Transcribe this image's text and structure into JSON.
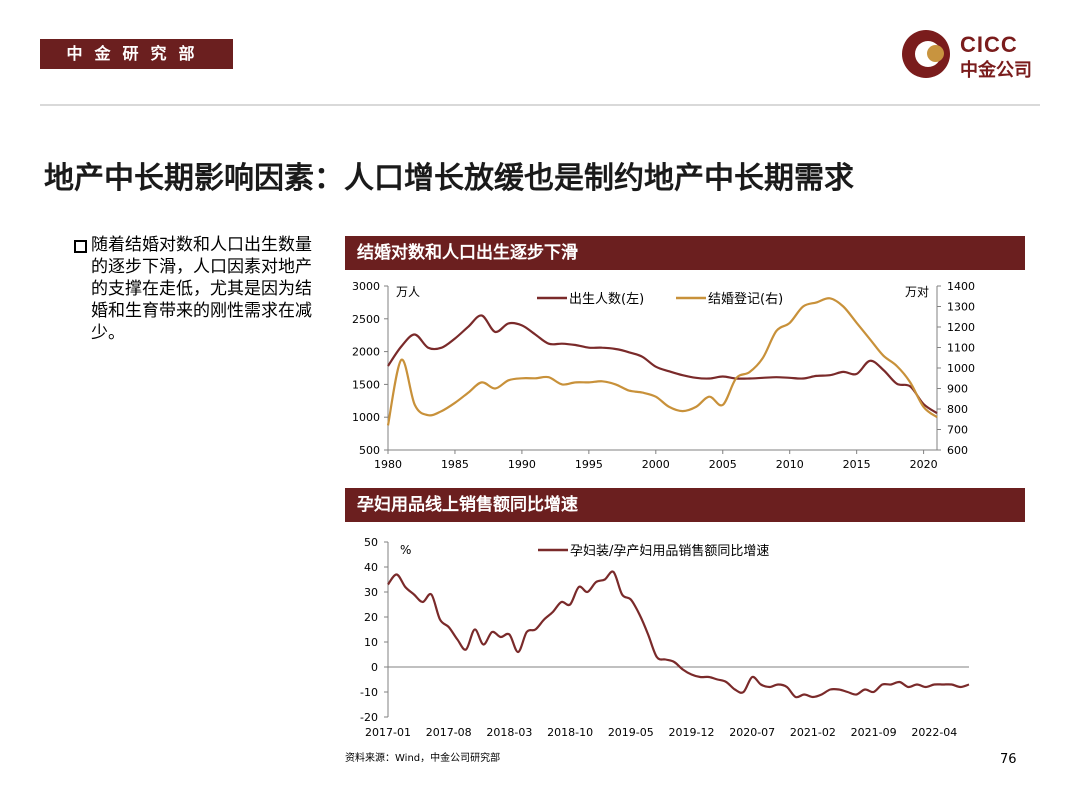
{
  "header": {
    "dept_label": "中金研究部",
    "logo_en": "CICC",
    "logo_cn": "中金公司"
  },
  "page": {
    "title": "地产中长期影响因素：人口增长放缓也是制约地产中长期需求",
    "page_number": "76"
  },
  "bullet": {
    "text": "随着结婚对数和人口出生数量的逐步下滑，人口因素对地产的支撑在走低，尤其是因为结婚和生育带来的刚性需求在减少。"
  },
  "footer": {
    "source": "资料来源：Wind，中金公司研究部"
  },
  "colors": {
    "brand": "#6b1f1f",
    "birth_line": "#7a2a2a",
    "marriage_line": "#c8913a",
    "growth_line": "#7a2a2a"
  },
  "chart_data": [
    {
      "type": "line",
      "title": "结婚对数和人口出生逐步下滑",
      "left_unit": "万人",
      "right_unit": "万对",
      "xlim": [
        1980,
        2021
      ],
      "x_ticks": [
        1980,
        1985,
        1990,
        1995,
        2000,
        2005,
        2010,
        2015,
        2020
      ],
      "ylim_left": [
        500,
        3000
      ],
      "y_ticks_left": [
        500,
        1000,
        1500,
        2000,
        2500,
        3000
      ],
      "ylim_right": [
        600,
        1400
      ],
      "y_ticks_right": [
        600,
        700,
        800,
        900,
        1000,
        1100,
        1200,
        1300,
        1400
      ],
      "legend_position": "top",
      "series": [
        {
          "name": "出生人数(左)",
          "axis": "left",
          "x": [
            1980,
            1981,
            1982,
            1983,
            1984,
            1985,
            1986,
            1987,
            1988,
            1989,
            1990,
            1991,
            1992,
            1993,
            1994,
            1995,
            1996,
            1997,
            1998,
            1999,
            2000,
            2001,
            2002,
            2003,
            2004,
            2005,
            2006,
            2007,
            2008,
            2009,
            2010,
            2011,
            2012,
            2013,
            2014,
            2015,
            2016,
            2017,
            2018,
            2019,
            2020,
            2021
          ],
          "y": [
            1780,
            2080,
            2260,
            2060,
            2060,
            2200,
            2380,
            2550,
            2300,
            2430,
            2400,
            2260,
            2120,
            2120,
            2100,
            2060,
            2060,
            2040,
            1990,
            1920,
            1770,
            1700,
            1640,
            1600,
            1590,
            1620,
            1590,
            1590,
            1600,
            1610,
            1600,
            1590,
            1630,
            1640,
            1690,
            1660,
            1860,
            1720,
            1510,
            1470,
            1200,
            1062
          ]
        },
        {
          "name": "结婚登记(右)",
          "axis": "right",
          "x": [
            1980,
            1981,
            1982,
            1983,
            1984,
            1985,
            1986,
            1987,
            1988,
            1989,
            1990,
            1991,
            1992,
            1993,
            1994,
            1995,
            1996,
            1997,
            1998,
            1999,
            2000,
            2001,
            2002,
            2003,
            2004,
            2005,
            2006,
            2007,
            2008,
            2009,
            2010,
            2011,
            2012,
            2013,
            2014,
            2015,
            2016,
            2017,
            2018,
            2019,
            2020,
            2021
          ],
          "y": [
            720,
            1040,
            820,
            770,
            790,
            830,
            880,
            930,
            900,
            940,
            950,
            950,
            955,
            920,
            930,
            930,
            935,
            920,
            890,
            880,
            860,
            810,
            790,
            810,
            860,
            820,
            950,
            980,
            1050,
            1180,
            1220,
            1300,
            1320,
            1340,
            1300,
            1220,
            1140,
            1060,
            1010,
            930,
            810,
            760
          ]
        }
      ]
    },
    {
      "type": "line",
      "title": "孕妇用品线上销售额同比增速",
      "y_unit": "%",
      "x_tick_labels": [
        "2017-01",
        "2017-08",
        "2018-03",
        "2018-10",
        "2019-05",
        "2019-12",
        "2020-07",
        "2021-02",
        "2021-09",
        "2022-04"
      ],
      "ylim": [
        -20,
        50
      ],
      "y_ticks": [
        -20,
        -10,
        0,
        10,
        20,
        30,
        40,
        50
      ],
      "legend_position": "top",
      "series": [
        {
          "name": "孕妇装/孕产妇用品销售额同比增速",
          "x": [
            "2017-01",
            "2017-02",
            "2017-03",
            "2017-04",
            "2017-05",
            "2017-06",
            "2017-07",
            "2017-08",
            "2017-09",
            "2017-10",
            "2017-11",
            "2017-12",
            "2018-01",
            "2018-02",
            "2018-03",
            "2018-04",
            "2018-05",
            "2018-06",
            "2018-07",
            "2018-08",
            "2018-09",
            "2018-10",
            "2018-11",
            "2018-12",
            "2019-01",
            "2019-02",
            "2019-03",
            "2019-04",
            "2019-05",
            "2019-06",
            "2019-07",
            "2019-08",
            "2019-09",
            "2019-10",
            "2019-11",
            "2019-12",
            "2020-01",
            "2020-02",
            "2020-03",
            "2020-04",
            "2020-05",
            "2020-06",
            "2020-07",
            "2020-08",
            "2020-09",
            "2020-10",
            "2020-11",
            "2020-12",
            "2021-01",
            "2021-02",
            "2021-03",
            "2021-04",
            "2021-05",
            "2021-06",
            "2021-07",
            "2021-08",
            "2021-09",
            "2021-10",
            "2021-11",
            "2021-12",
            "2022-01",
            "2022-02",
            "2022-03",
            "2022-04",
            "2022-05",
            "2022-06",
            "2022-07",
            "2022-08"
          ],
          "y": [
            33,
            37,
            32,
            29,
            26,
            29,
            19,
            16,
            11,
            7,
            15,
            9,
            14,
            12,
            13,
            6,
            14,
            15,
            19,
            22,
            26,
            25,
            32,
            30,
            34,
            35,
            38,
            29,
            27,
            21,
            13,
            4,
            3,
            2,
            -1,
            -3,
            -4,
            -4,
            -5,
            -6,
            -9,
            -10,
            -4,
            -7,
            -8,
            -7,
            -8,
            -12,
            -11,
            -12,
            -11,
            -9,
            -9,
            -10,
            -11,
            -9,
            -10,
            -7,
            -7,
            -6,
            -8,
            -7,
            -8,
            -7,
            -7,
            -7,
            -8,
            -7
          ]
        }
      ]
    }
  ]
}
